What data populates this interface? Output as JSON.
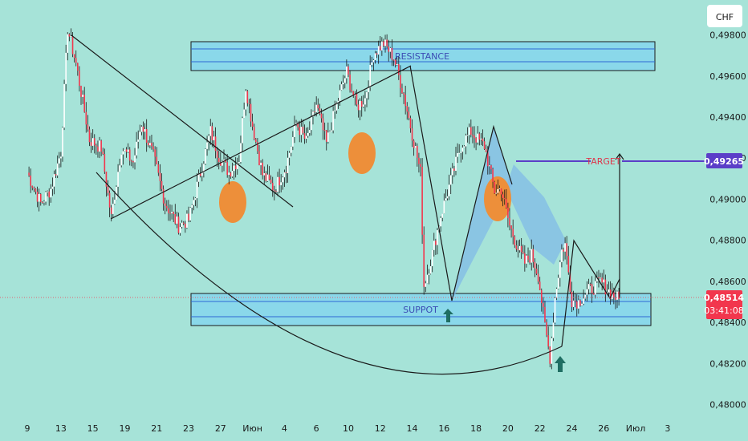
{
  "currency_button": "CHF",
  "colors": {
    "background": "#a6e3d8",
    "bull": "#ffffff",
    "bear": "#f2364d",
    "wick": "#1a1a1a",
    "zone_fill": "#8ad8ea",
    "zone_line": "#2d69d4",
    "target_line": "#5b3ec8",
    "target_text": "#e0344a",
    "orange": "#ed8f3a",
    "arrow": "#1f6e63",
    "pattern_fill": "#7fb8e8",
    "price_badge": "#f2364d",
    "target_badge": "#5b3ec8"
  },
  "chart_data": {
    "type": "candlestick",
    "title": "",
    "y_axis": {
      "range": [
        0.4794,
        0.4997
      ],
      "ticks": [
        "0,49800",
        "0,49600",
        "0,49400",
        "0,49200",
        "0,49000",
        "0,48800",
        "0,48600",
        "0,48400",
        "0,48200",
        "0,48000"
      ],
      "tick_values": [
        0.498,
        0.496,
        0.494,
        0.492,
        0.49,
        0.488,
        0.486,
        0.484,
        0.482,
        0.48
      ]
    },
    "x_axis": {
      "ticks": [
        "9",
        "13",
        "15",
        "19",
        "21",
        "23",
        "27",
        "Июн",
        "4",
        "6",
        "10",
        "12",
        "14",
        "16",
        "18",
        "20",
        "22",
        "24",
        "26",
        "Июл",
        "3"
      ],
      "tick_index": [
        0,
        20,
        39,
        58,
        77,
        96,
        115,
        134,
        153,
        172,
        191,
        210,
        229,
        248,
        267,
        286,
        305,
        324,
        343,
        362,
        381
      ],
      "bars_total": 400
    },
    "current_price": {
      "label": "0,48514",
      "value": 0.48514,
      "countdown": "03:41:08"
    },
    "target_price": {
      "label": "0,49265",
      "value": 0.49265
    },
    "waypoints": [
      [
        0,
        0.4913
      ],
      [
        8,
        0.4898
      ],
      [
        14,
        0.4905
      ],
      [
        20,
        0.4923
      ],
      [
        24,
        0.4983
      ],
      [
        29,
        0.4966
      ],
      [
        37,
        0.4929
      ],
      [
        44,
        0.4925
      ],
      [
        50,
        0.4891
      ],
      [
        56,
        0.4925
      ],
      [
        63,
        0.4918
      ],
      [
        68,
        0.4937
      ],
      [
        75,
        0.4921
      ],
      [
        82,
        0.4898
      ],
      [
        90,
        0.4887
      ],
      [
        96,
        0.489
      ],
      [
        103,
        0.4913
      ],
      [
        109,
        0.4933
      ],
      [
        114,
        0.4921
      ],
      [
        120,
        0.4913
      ],
      [
        126,
        0.492
      ],
      [
        130,
        0.4955
      ],
      [
        134,
        0.4936
      ],
      [
        140,
        0.4912
      ],
      [
        147,
        0.4905
      ],
      [
        154,
        0.4916
      ],
      [
        160,
        0.4937
      ],
      [
        166,
        0.4928
      ],
      [
        172,
        0.4946
      ],
      [
        178,
        0.4927
      ],
      [
        184,
        0.4946
      ],
      [
        190,
        0.4962
      ],
      [
        196,
        0.4945
      ],
      [
        201,
        0.4949
      ],
      [
        206,
        0.4971
      ],
      [
        212,
        0.4976
      ],
      [
        218,
        0.4969
      ],
      [
        224,
        0.4951
      ],
      [
        230,
        0.4928
      ],
      [
        234,
        0.4913
      ],
      [
        236,
        0.4858
      ],
      [
        240,
        0.487
      ],
      [
        246,
        0.4892
      ],
      [
        252,
        0.4909
      ],
      [
        258,
        0.4926
      ],
      [
        264,
        0.4933
      ],
      [
        268,
        0.4929
      ],
      [
        272,
        0.4926
      ],
      [
        278,
        0.4904
      ],
      [
        282,
        0.4905
      ],
      [
        287,
        0.4887
      ],
      [
        292,
        0.4876
      ],
      [
        296,
        0.4869
      ],
      [
        300,
        0.4873
      ],
      [
        304,
        0.4863
      ],
      [
        308,
        0.4838
      ],
      [
        311,
        0.4823
      ],
      [
        314,
        0.4852
      ],
      [
        318,
        0.4875
      ],
      [
        320,
        0.4878
      ],
      [
        324,
        0.4851
      ],
      [
        328,
        0.485
      ],
      [
        333,
        0.4855
      ],
      [
        337,
        0.4857
      ],
      [
        341,
        0.486
      ],
      [
        345,
        0.4856
      ],
      [
        349,
        0.4853
      ],
      [
        352,
        0.48514
      ]
    ],
    "drawings": [
      {
        "kind": "zone",
        "label": "RESISTANCE",
        "from_bar": 97,
        "to_bar": 370,
        "low": 0.4975,
        "high": 0.4992
      },
      {
        "kind": "zone",
        "label": "SUPPOT",
        "from_bar": 97,
        "to_bar": 370,
        "low": 0.4836,
        "high": 0.4853
      },
      {
        "kind": "line",
        "label": "TARGET",
        "from_bar": 294,
        "to_bar": 400,
        "value": 0.49265
      }
    ]
  }
}
